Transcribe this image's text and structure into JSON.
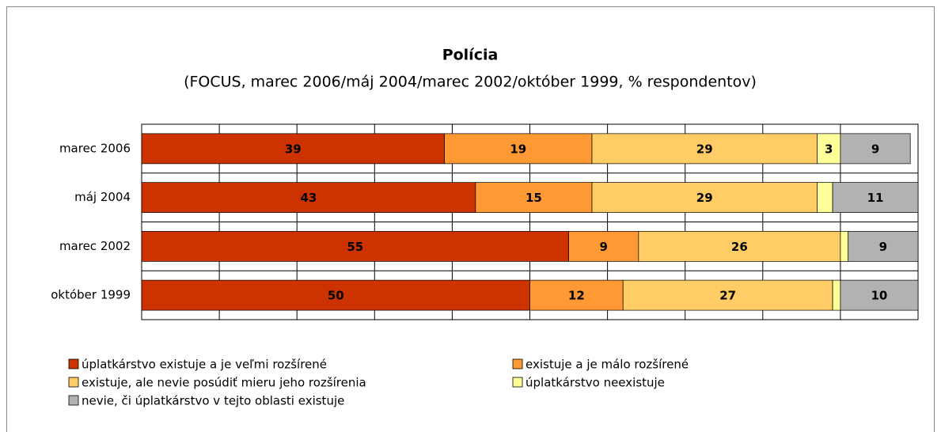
{
  "chart_data": {
    "type": "stacked-bar-horizontal",
    "title": "Polícia",
    "subtitle": "(FOCUS, marec 2006/máj 2004/marec 2002/október 1999, % respondentov)",
    "categories": [
      "marec 2006",
      "máj 2004",
      "marec 2002",
      "október 1999"
    ],
    "series": [
      {
        "name": "úplatkárstvo existuje a je veľmi rozšírené",
        "color": "#cc3300",
        "values": [
          39,
          43,
          55,
          50
        ]
      },
      {
        "name": "existuje a je málo rozšírené",
        "color": "#ff9933",
        "values": [
          19,
          15,
          9,
          12
        ]
      },
      {
        "name": "existuje, ale nevie posúdiť mieru jeho rozšírenia",
        "color": "#ffcc66",
        "values": [
          29,
          29,
          26,
          27
        ]
      },
      {
        "name": "úplatkárstvo neexistuje",
        "color": "#ffff99",
        "values": [
          3,
          2,
          1,
          1
        ],
        "value_labels": [
          "3",
          null,
          null,
          null
        ]
      },
      {
        "name": "nevie, či úplatkárstvo v tejto oblasti existuje",
        "color": "#b2b2b2",
        "values": [
          9,
          11,
          9,
          10
        ]
      }
    ],
    "xlim": [
      0,
      100
    ],
    "xticks": [
      0,
      10,
      20,
      30,
      40,
      50,
      60,
      70,
      80,
      90,
      100
    ],
    "grid": true
  }
}
